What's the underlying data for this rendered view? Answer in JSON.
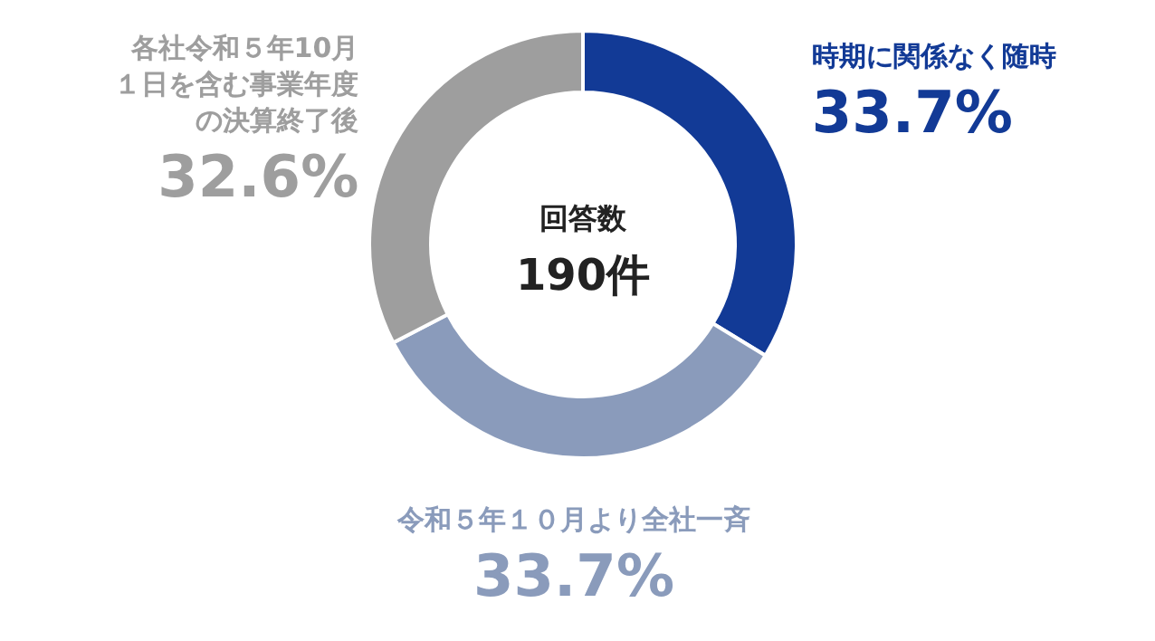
{
  "chart_data": {
    "type": "donut",
    "categories": [
      "時期に関係なく随時",
      "令和５年１０月より全社一斉",
      "各社令和５年10月１日を含む事業年度の決算終了後"
    ],
    "values": [
      33.7,
      33.7,
      32.6
    ],
    "colors": [
      "#123a96",
      "#8a9bbb",
      "#9e9e9e"
    ],
    "value_labels": [
      "33.7%",
      "33.7%",
      "32.6%"
    ],
    "annotations": [
      "回答数",
      "190件"
    ]
  }
}
